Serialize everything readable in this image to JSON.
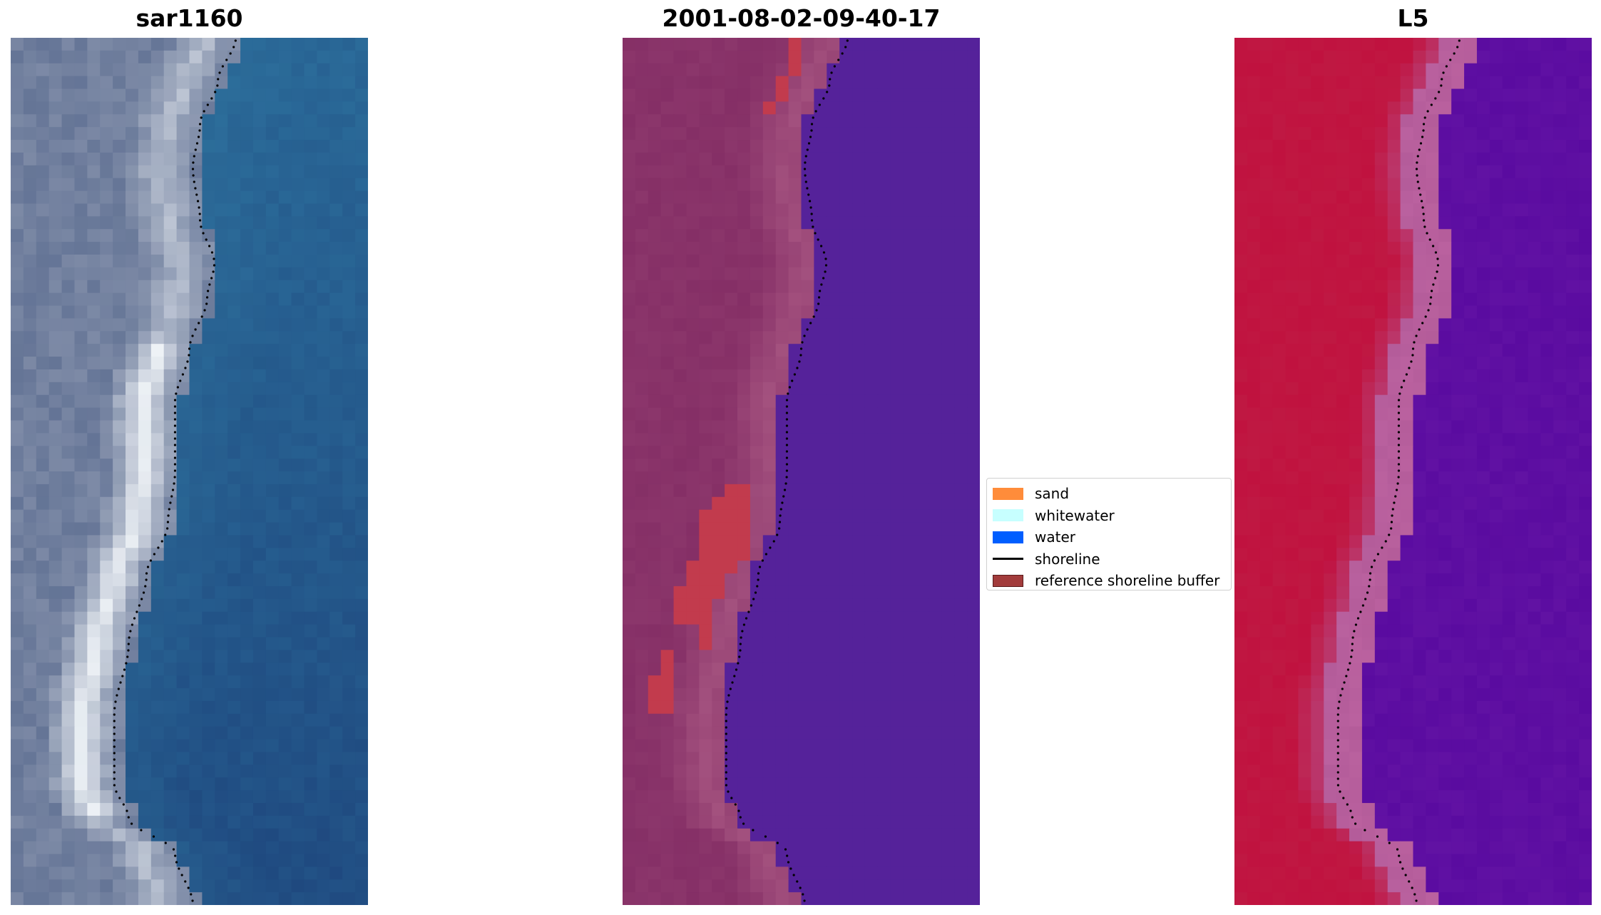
{
  "panels": [
    {
      "title": "sar1160"
    },
    {
      "title": "2001-08-02-09-40-17"
    },
    {
      "title": "L5"
    }
  ],
  "legend": {
    "items": [
      {
        "label": "sand",
        "color": "#ff8c3a",
        "kind": "patch"
      },
      {
        "label": "whitewater",
        "color": "#c7ffff",
        "kind": "patch"
      },
      {
        "label": "water",
        "color": "#005eff",
        "kind": "patch"
      },
      {
        "label": "shoreline",
        "color": "#000000",
        "kind": "line"
      },
      {
        "label": "reference shoreline buffer",
        "color": "#a23b3b",
        "kind": "patch"
      }
    ]
  },
  "colors": {
    "rgb_water": "#2b6c9a",
    "rgb_land": "#7d8aa6",
    "rgb_whitewater": "#eef2f6",
    "class_land": "#852f66",
    "class_land_light": "#a4527f",
    "class_water": "#55229a",
    "class_buffer": "#c23b4d",
    "index_land": "#c0123f",
    "index_water": "#5a0ba0",
    "index_transition": "#b45c9a"
  }
}
